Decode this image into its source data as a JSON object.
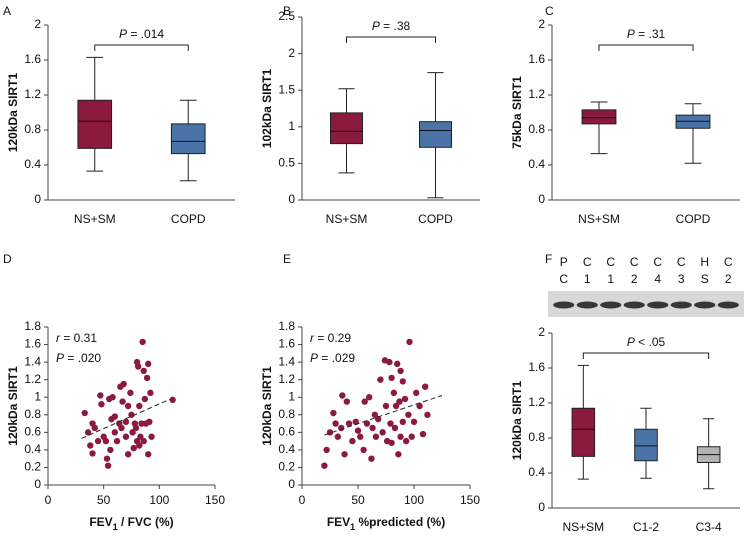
{
  "chart_data": [
    {
      "type": "box",
      "panel": "A",
      "y_label": "120kDa SIRT1",
      "ylim": [
        0,
        2
      ],
      "yticks": [
        0,
        0.4,
        0.8,
        1.2,
        1.6,
        2
      ],
      "categories": [
        "NS+SM",
        "COPD"
      ],
      "colors": [
        "#8b1a3e",
        "#4a74a8"
      ],
      "boxes": [
        {
          "min": 0.33,
          "q1": 0.59,
          "median": 0.9,
          "q3": 1.14,
          "max": 1.63
        },
        {
          "min": 0.22,
          "q1": 0.53,
          "median": 0.67,
          "q3": 0.87,
          "max": 1.14
        }
      ],
      "annotation": {
        "symbol": "P",
        "text": " = .014"
      }
    },
    {
      "type": "box",
      "panel": "B",
      "y_label": "102kDa SIRT1",
      "ylim": [
        0,
        2.5
      ],
      "yticks": [
        0,
        0.5,
        1,
        1.5,
        2,
        2.5
      ],
      "categories": [
        "NS+SM",
        "COPD"
      ],
      "colors": [
        "#8b1a3e",
        "#4a74a8"
      ],
      "boxes": [
        {
          "min": 0.37,
          "q1": 0.77,
          "median": 0.94,
          "q3": 1.19,
          "max": 1.52
        },
        {
          "min": 0.03,
          "q1": 0.72,
          "median": 0.95,
          "q3": 1.07,
          "max": 1.74
        }
      ],
      "annotation": {
        "symbol": "P",
        "text": " = .38"
      }
    },
    {
      "type": "box",
      "panel": "C",
      "y_label": "75kDa SIRT1",
      "ylim": [
        0,
        2
      ],
      "yticks": [
        0,
        0.4,
        0.8,
        1.2,
        1.6,
        2
      ],
      "categories": [
        "NS+SM",
        "COPD"
      ],
      "colors": [
        "#8b1a3e",
        "#4a74a8"
      ],
      "boxes": [
        {
          "min": 0.53,
          "q1": 0.87,
          "median": 0.94,
          "q3": 1.03,
          "max": 1.12
        },
        {
          "min": 0.42,
          "q1": 0.82,
          "median": 0.9,
          "q3": 0.97,
          "max": 1.1
        }
      ],
      "annotation": {
        "symbol": "P",
        "text": " = .31"
      }
    },
    {
      "type": "scatter",
      "panel": "D",
      "y_label": "120kDa SIRT1",
      "x_label": {
        "text": "FEV",
        "sub": "1",
        "rest": " / FVC (%)"
      },
      "xlim": [
        0,
        150
      ],
      "xticks": [
        0,
        50,
        100,
        150
      ],
      "ylim": [
        0,
        1.8
      ],
      "yticks": [
        0,
        0.2,
        0.4,
        0.6,
        0.8,
        1,
        1.2,
        1.4,
        1.6,
        1.8
      ],
      "color": "#8b1a3e",
      "x": [
        33,
        36,
        38,
        40,
        40,
        42,
        45,
        47,
        48,
        50,
        52,
        53,
        54,
        55,
        56,
        57,
        58,
        60,
        60,
        62,
        64,
        65,
        66,
        67,
        68,
        70,
        70,
        72,
        72,
        74,
        75,
        76,
        77,
        78,
        79,
        80,
        80,
        81,
        82,
        82,
        83,
        84,
        85,
        86,
        86,
        87,
        88,
        89,
        90,
        90,
        91,
        92,
        93,
        112
      ],
      "y": [
        0.82,
        0.6,
        0.45,
        0.36,
        0.7,
        0.65,
        0.5,
        1.02,
        0.92,
        0.55,
        0.5,
        0.3,
        0.22,
        0.98,
        0.4,
        0.75,
        1.0,
        0.78,
        0.6,
        0.5,
        0.7,
        1.12,
        0.65,
        0.95,
        1.15,
        0.72,
        0.55,
        0.9,
        0.35,
        1.05,
        0.8,
        0.6,
        0.42,
        0.7,
        0.65,
        1.4,
        0.5,
        1.35,
        0.9,
        0.45,
        0.55,
        0.7,
        1.63,
        1.3,
        0.5,
        0.98,
        0.7,
        1.22,
        1.38,
        0.35,
        0.72,
        1.05,
        0.55,
        0.97
      ],
      "trendline": {
        "x": [
          30,
          110
        ],
        "y": [
          0.53,
          0.98
        ]
      },
      "annotations": [
        {
          "symbol": "r",
          "text": " = 0.31"
        },
        {
          "symbol": "P",
          "text": " = .020"
        }
      ]
    },
    {
      "type": "scatter",
      "panel": "E",
      "y_label": "120kDa SIRT1",
      "x_label": {
        "text": "FEV",
        "sub": "1",
        "rest": " %predicted (%)"
      },
      "xlim": [
        0,
        150
      ],
      "xticks": [
        0,
        50,
        100,
        150
      ],
      "ylim": [
        0,
        1.8
      ],
      "yticks": [
        0,
        0.2,
        0.4,
        0.6,
        0.8,
        1,
        1.2,
        1.4,
        1.6,
        1.8
      ],
      "color": "#8b1a3e",
      "x": [
        20,
        22,
        25,
        28,
        30,
        32,
        35,
        36,
        38,
        40,
        42,
        45,
        48,
        50,
        52,
        55,
        56,
        58,
        60,
        62,
        63,
        65,
        66,
        68,
        70,
        72,
        74,
        75,
        76,
        78,
        79,
        80,
        80,
        82,
        83,
        84,
        85,
        86,
        87,
        88,
        88,
        90,
        90,
        92,
        93,
        95,
        96,
        98,
        100,
        102,
        105,
        108,
        110,
        112
      ],
      "y": [
        0.22,
        0.4,
        0.6,
        0.82,
        0.7,
        0.55,
        0.65,
        1.02,
        0.35,
        0.95,
        0.7,
        0.5,
        0.72,
        0.62,
        0.55,
        0.4,
        0.95,
        0.7,
        1.0,
        0.3,
        0.65,
        0.8,
        0.55,
        0.75,
        1.2,
        0.6,
        1.42,
        0.9,
        0.5,
        1.4,
        0.7,
        1.22,
        0.48,
        1.05,
        0.65,
        0.9,
        1.38,
        0.35,
        0.95,
        1.3,
        0.55,
        0.72,
        1.18,
        0.98,
        0.5,
        0.8,
        1.63,
        0.55,
        0.72,
        1.05,
        0.9,
        0.58,
        1.12,
        0.8
      ],
      "trendline": {
        "x": [
          20,
          125
        ],
        "y": [
          0.57,
          1.02
        ]
      },
      "annotations": [
        {
          "symbol": "r",
          "text": " = 0.29"
        },
        {
          "symbol": "P",
          "text": " = .029"
        }
      ]
    },
    {
      "type": "box",
      "panel": "F",
      "y_label": "120kDa SIRT1",
      "ylim": [
        0,
        2
      ],
      "yticks": [
        0,
        0.4,
        0.8,
        1.2,
        1.6,
        2
      ],
      "categories": [
        "NS+SM",
        "C1-2",
        "C3-4"
      ],
      "colors": [
        "#8b1a3e",
        "#4a74a8",
        "#b3b3b3"
      ],
      "boxes": [
        {
          "min": 0.33,
          "q1": 0.59,
          "median": 0.9,
          "q3": 1.14,
          "max": 1.63
        },
        {
          "min": 0.34,
          "q1": 0.54,
          "median": 0.71,
          "q3": 0.9,
          "max": 1.14
        },
        {
          "min": 0.22,
          "q1": 0.52,
          "median": 0.61,
          "q3": 0.7,
          "max": 1.02
        }
      ],
      "annotation": {
        "symbol": "P",
        "text": " < .05"
      },
      "lanes": [
        [
          "P",
          "C"
        ],
        [
          "C",
          "1"
        ],
        [
          "C",
          "1"
        ],
        [
          "C",
          "2"
        ],
        [
          "C",
          "4"
        ],
        [
          "C",
          "3"
        ],
        [
          "H",
          "S"
        ],
        [
          "C",
          "2"
        ]
      ]
    }
  ]
}
